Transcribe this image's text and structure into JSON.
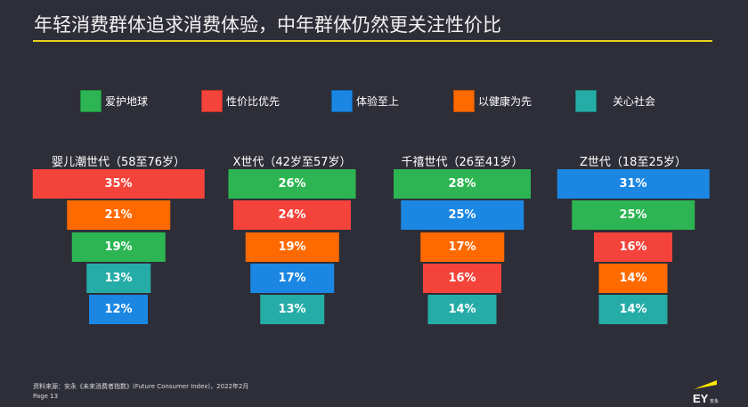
{
  "title": "年轻消费群体追求消费体验，中年群体仍然更关注性价比",
  "footer": {
    "source": "资料来源：安永《未来消费者指数》(Future Consumer Index)，2022年2月",
    "page": "Page 13",
    "logo_text": "EY安永"
  },
  "chart_data": {
    "type": "funnel",
    "legend": [
      {
        "name": "爱护地球",
        "color": "#2cb552"
      },
      {
        "name": "性价比优先",
        "color": "#f4433a"
      },
      {
        "name": "体验至上",
        "color": "#1b87e3"
      },
      {
        "name": "以健康为先",
        "color": "#ff6a00"
      },
      {
        "name": "关心社会",
        "color": "#26aca7"
      }
    ],
    "groups": [
      {
        "name": "婴儿潮世代（58至76岁）",
        "items": [
          {
            "cat": "性价比优先",
            "value": 35
          },
          {
            "cat": "以健康为先",
            "value": 21
          },
          {
            "cat": "爱护地球",
            "value": 19
          },
          {
            "cat": "关心社会",
            "value": 13
          },
          {
            "cat": "体验至上",
            "value": 12
          }
        ]
      },
      {
        "name": "X世代（42岁至57岁）",
        "items": [
          {
            "cat": "爱护地球",
            "value": 26
          },
          {
            "cat": "性价比优先",
            "value": 24
          },
          {
            "cat": "以健康为先",
            "value": 19
          },
          {
            "cat": "体验至上",
            "value": 17
          },
          {
            "cat": "关心社会",
            "value": 13
          }
        ]
      },
      {
        "name": "千禧世代（26至41岁）",
        "items": [
          {
            "cat": "爱护地球",
            "value": 28
          },
          {
            "cat": "体验至上",
            "value": 25
          },
          {
            "cat": "以健康为先",
            "value": 17
          },
          {
            "cat": "性价比优先",
            "value": 16
          },
          {
            "cat": "关心社会",
            "value": 14
          }
        ]
      },
      {
        "name": "Z世代（18至25岁）",
        "items": [
          {
            "cat": "体验至上",
            "value": 31
          },
          {
            "cat": "爱护地球",
            "value": 25
          },
          {
            "cat": "性价比优先",
            "value": 16
          },
          {
            "cat": "以健康为先",
            "value": 14
          },
          {
            "cat": "关心社会",
            "value": 14
          }
        ]
      }
    ],
    "unit": "%"
  }
}
